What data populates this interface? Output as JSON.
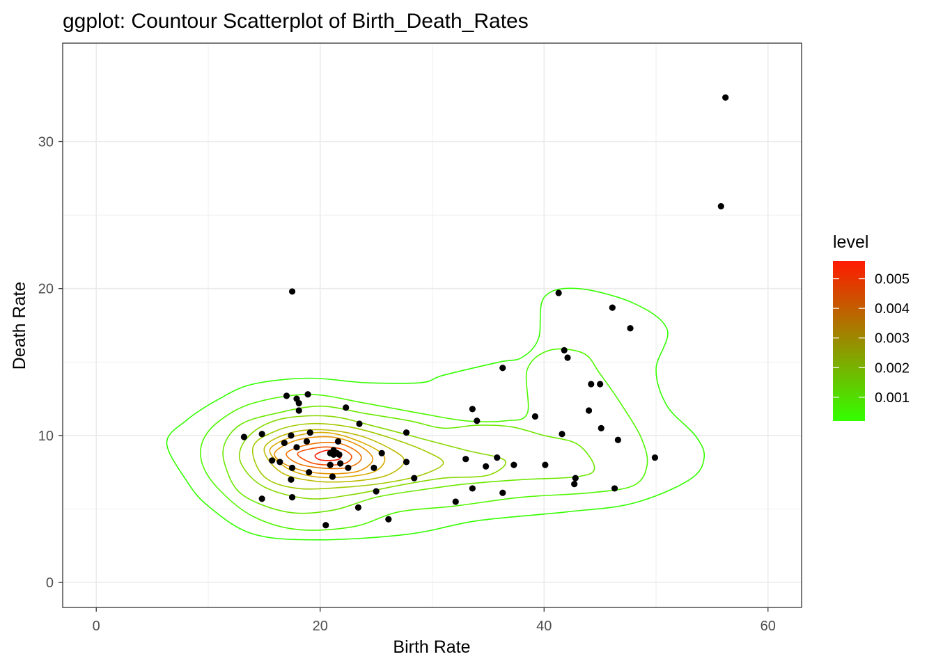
{
  "chart_data": {
    "type": "scatter",
    "title": "ggplot: Countour Scatterplot of Birth_Death_Rates",
    "xlabel": "Birth Rate",
    "ylabel": "Death Rate",
    "xlim": [
      -3,
      63
    ],
    "ylim": [
      -1.7,
      36.7
    ],
    "xticks": [
      0,
      20,
      40,
      60
    ],
    "yticks": [
      0,
      10,
      20,
      30
    ],
    "grid": true,
    "point_color": "#000000",
    "points": [
      [
        56.2,
        33.0
      ],
      [
        55.8,
        25.6
      ],
      [
        17.5,
        19.8
      ],
      [
        41.3,
        19.7
      ],
      [
        46.1,
        18.7
      ],
      [
        47.7,
        17.3
      ],
      [
        41.8,
        15.8
      ],
      [
        42.1,
        15.3
      ],
      [
        36.3,
        14.6
      ],
      [
        44.2,
        13.5
      ],
      [
        45.0,
        13.5
      ],
      [
        17.0,
        12.7
      ],
      [
        18.9,
        12.8
      ],
      [
        17.9,
        12.5
      ],
      [
        18.1,
        12.2
      ],
      [
        22.3,
        11.9
      ],
      [
        33.6,
        11.8
      ],
      [
        18.1,
        11.7
      ],
      [
        44.0,
        11.7
      ],
      [
        39.2,
        11.3
      ],
      [
        34.0,
        11.0
      ],
      [
        23.5,
        10.8
      ],
      [
        45.1,
        10.5
      ],
      [
        19.1,
        10.2
      ],
      [
        27.7,
        10.2
      ],
      [
        14.8,
        10.1
      ],
      [
        41.6,
        10.1
      ],
      [
        17.4,
        10.0
      ],
      [
        13.2,
        9.9
      ],
      [
        46.6,
        9.7
      ],
      [
        21.6,
        9.6
      ],
      [
        16.8,
        9.5
      ],
      [
        18.8,
        9.6
      ],
      [
        17.9,
        9.2
      ],
      [
        21.2,
        9.0
      ],
      [
        20.9,
        8.8
      ],
      [
        21.5,
        8.8
      ],
      [
        25.5,
        8.8
      ],
      [
        21.2,
        8.7
      ],
      [
        21.7,
        8.7
      ],
      [
        49.9,
        8.5
      ],
      [
        35.8,
        8.5
      ],
      [
        33.0,
        8.4
      ],
      [
        15.7,
        8.3
      ],
      [
        16.4,
        8.2
      ],
      [
        27.7,
        8.2
      ],
      [
        21.8,
        8.1
      ],
      [
        37.3,
        8.0
      ],
      [
        40.1,
        8.0
      ],
      [
        20.9,
        8.0
      ],
      [
        34.8,
        7.9
      ],
      [
        17.5,
        7.8
      ],
      [
        22.5,
        7.8
      ],
      [
        24.8,
        7.8
      ],
      [
        19.0,
        7.5
      ],
      [
        21.1,
        7.2
      ],
      [
        28.4,
        7.1
      ],
      [
        42.8,
        7.1
      ],
      [
        17.4,
        7.0
      ],
      [
        42.7,
        6.7
      ],
      [
        46.3,
        6.4
      ],
      [
        33.6,
        6.4
      ],
      [
        25.0,
        6.2
      ],
      [
        36.3,
        6.1
      ],
      [
        17.5,
        5.8
      ],
      [
        14.8,
        5.7
      ],
      [
        32.1,
        5.5
      ],
      [
        23.4,
        5.1
      ],
      [
        26.1,
        4.3
      ],
      [
        20.5,
        3.9
      ]
    ],
    "legend": {
      "title": "level",
      "placement": "right",
      "color_low": "#33ff00",
      "color_high": "#ff1a00",
      "range": [
        0.0002,
        0.0056
      ],
      "ticks": [
        {
          "value": 0.001,
          "label": "0.001"
        },
        {
          "value": 0.002,
          "label": "0.002"
        },
        {
          "value": 0.003,
          "label": "0.003"
        },
        {
          "value": 0.004,
          "label": "0.004"
        },
        {
          "value": 0.005,
          "label": "0.005"
        }
      ]
    },
    "contours": [
      {
        "level": 0.0005,
        "color": "#33ff00",
        "points": [
          [
            6.3,
            9.5
          ],
          [
            8,
            11
          ],
          [
            11,
            12.5
          ],
          [
            14,
            13.5
          ],
          [
            19,
            13.9
          ],
          [
            24,
            13.6
          ],
          [
            29,
            13.6
          ],
          [
            31,
            14.1
          ],
          [
            36,
            15
          ],
          [
            38,
            15.3
          ],
          [
            39.5,
            16.6
          ],
          [
            40,
            19.4
          ],
          [
            43,
            20.0
          ],
          [
            48,
            19.0
          ],
          [
            51,
            17.2
          ],
          [
            50,
            14.5
          ],
          [
            51,
            12.0
          ],
          [
            53.5,
            10.0
          ],
          [
            54.3,
            8.5
          ],
          [
            53,
            7.0
          ],
          [
            48,
            5.4
          ],
          [
            42,
            4.8
          ],
          [
            34,
            4.2
          ],
          [
            28,
            3.3
          ],
          [
            20,
            2.9
          ],
          [
            14,
            3.3
          ],
          [
            10,
            5.2
          ],
          [
            8,
            7.0
          ],
          [
            6.3,
            9.5
          ]
        ]
      },
      {
        "level": 0.001,
        "color": "#4ef700",
        "points": [
          [
            9.5,
            9.6
          ],
          [
            11,
            11
          ],
          [
            14,
            12.2
          ],
          [
            19,
            12.8
          ],
          [
            24,
            12.2
          ],
          [
            29,
            11.5
          ],
          [
            33,
            11.0
          ],
          [
            36.5,
            11.0
          ],
          [
            38.5,
            11.5
          ],
          [
            38.5,
            14.5
          ],
          [
            40.5,
            15.8
          ],
          [
            43.5,
            15.6
          ],
          [
            45,
            14.2
          ],
          [
            47,
            12.0
          ],
          [
            48.7,
            9.8
          ],
          [
            49.2,
            8.0
          ],
          [
            48,
            6.6
          ],
          [
            44,
            6.1
          ],
          [
            38,
            5.8
          ],
          [
            32,
            5.2
          ],
          [
            27,
            4.8
          ],
          [
            23,
            3.8
          ],
          [
            18,
            3.6
          ],
          [
            14,
            4.5
          ],
          [
            11,
            6.3
          ],
          [
            9.5,
            8.0
          ],
          [
            9.5,
            9.6
          ]
        ]
      },
      {
        "level": 0.0015,
        "color": "#6ae800",
        "points": [
          [
            11.5,
            9.5
          ],
          [
            13,
            10.8
          ],
          [
            16,
            11.5
          ],
          [
            20,
            12.0
          ],
          [
            24,
            11.5
          ],
          [
            28,
            11.0
          ],
          [
            31,
            10.5
          ],
          [
            34,
            10.7
          ],
          [
            37,
            10.6
          ],
          [
            40,
            10.0
          ],
          [
            43,
            9.4
          ],
          [
            44.5,
            7.8
          ],
          [
            43,
            7.2
          ],
          [
            38,
            7.0
          ],
          [
            33,
            6.7
          ],
          [
            29,
            6.3
          ],
          [
            25,
            5.8
          ],
          [
            21,
            4.9
          ],
          [
            17,
            4.8
          ],
          [
            13,
            6.0
          ],
          [
            11.5,
            8.0
          ],
          [
            11.5,
            9.5
          ]
        ]
      },
      {
        "level": 0.002,
        "color": "#86d900",
        "points": [
          [
            13,
            9.3
          ],
          [
            14.5,
            10.5
          ],
          [
            17,
            11.2
          ],
          [
            21,
            11.3
          ],
          [
            25,
            10.6
          ],
          [
            29,
            9.8
          ],
          [
            33,
            9.0
          ],
          [
            36.5,
            8.3
          ],
          [
            35,
            7.3
          ],
          [
            31,
            7.1
          ],
          [
            27,
            6.6
          ],
          [
            23,
            6.0
          ],
          [
            19,
            5.7
          ],
          [
            15,
            6.5
          ],
          [
            13,
            8.0
          ],
          [
            13,
            9.3
          ]
        ]
      },
      {
        "level": 0.0025,
        "color": "#a1ca00",
        "points": [
          [
            14,
            9.2
          ],
          [
            16,
            10.3
          ],
          [
            19,
            10.8
          ],
          [
            22.5,
            10.6
          ],
          [
            26,
            9.9
          ],
          [
            29.5,
            8.9
          ],
          [
            31,
            8.1
          ],
          [
            29,
            7.3
          ],
          [
            26,
            6.8
          ],
          [
            22.5,
            6.5
          ],
          [
            18,
            6.4
          ],
          [
            15,
            7.2
          ],
          [
            14,
            9.2
          ]
        ]
      },
      {
        "level": 0.003,
        "color": "#bdbb00",
        "points": [
          [
            15,
            9.1
          ],
          [
            17,
            10.1
          ],
          [
            20,
            10.4
          ],
          [
            23.5,
            10.0
          ],
          [
            26.5,
            9.0
          ],
          [
            27.5,
            8.2
          ],
          [
            26,
            7.3
          ],
          [
            23,
            6.9
          ],
          [
            19.5,
            6.9
          ],
          [
            16.5,
            7.5
          ],
          [
            15,
            9.1
          ]
        ]
      },
      {
        "level": 0.0035,
        "color": "#d9ac00",
        "points": [
          [
            15.5,
            9.0
          ],
          [
            17.5,
            9.9
          ],
          [
            20.5,
            10.2
          ],
          [
            23.5,
            9.6
          ],
          [
            25.7,
            8.6
          ],
          [
            25.0,
            7.6
          ],
          [
            22.5,
            7.2
          ],
          [
            19.5,
            7.2
          ],
          [
            17,
            7.8
          ],
          [
            15.5,
            9.0
          ]
        ]
      },
      {
        "level": 0.004,
        "color": "#e69200",
        "points": [
          [
            16,
            8.9
          ],
          [
            18,
            9.7
          ],
          [
            21,
            9.9
          ],
          [
            23.5,
            9.3
          ],
          [
            24.7,
            8.4
          ],
          [
            23.5,
            7.6
          ],
          [
            21,
            7.4
          ],
          [
            18.5,
            7.6
          ],
          [
            16.5,
            8.2
          ],
          [
            16,
            8.9
          ]
        ]
      },
      {
        "level": 0.0045,
        "color": "#ee7300",
        "points": [
          [
            17,
            8.8
          ],
          [
            19,
            9.4
          ],
          [
            21.5,
            9.5
          ],
          [
            23.3,
            8.9
          ],
          [
            23.6,
            8.3
          ],
          [
            22.3,
            7.8
          ],
          [
            20,
            7.8
          ],
          [
            18,
            8.1
          ],
          [
            17,
            8.8
          ]
        ]
      },
      {
        "level": 0.005,
        "color": "#f54f00",
        "points": [
          [
            18,
            8.8
          ],
          [
            20,
            9.2
          ],
          [
            21.8,
            9.1
          ],
          [
            22.8,
            8.6
          ],
          [
            22.2,
            8.1
          ],
          [
            20.5,
            8.0
          ],
          [
            19,
            8.2
          ],
          [
            18,
            8.8
          ]
        ]
      },
      {
        "level": 0.0055,
        "color": "#ff1a00",
        "points": [
          [
            19.6,
            8.7
          ],
          [
            20.7,
            9.0
          ],
          [
            21.8,
            8.8
          ],
          [
            21.7,
            8.4
          ],
          [
            20.6,
            8.3
          ],
          [
            19.8,
            8.4
          ],
          [
            19.6,
            8.7
          ]
        ]
      }
    ]
  }
}
